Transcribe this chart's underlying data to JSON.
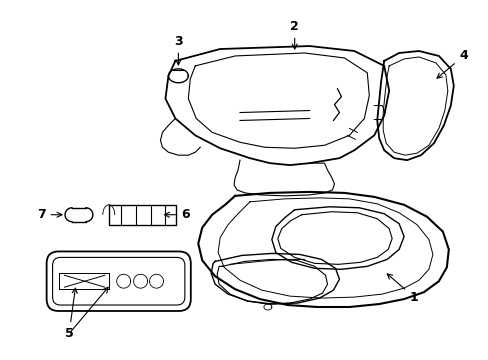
{
  "background_color": "#ffffff",
  "line_color": "#000000",
  "line_width": 1.0,
  "fig_width": 4.89,
  "fig_height": 3.6,
  "dpi": 100
}
